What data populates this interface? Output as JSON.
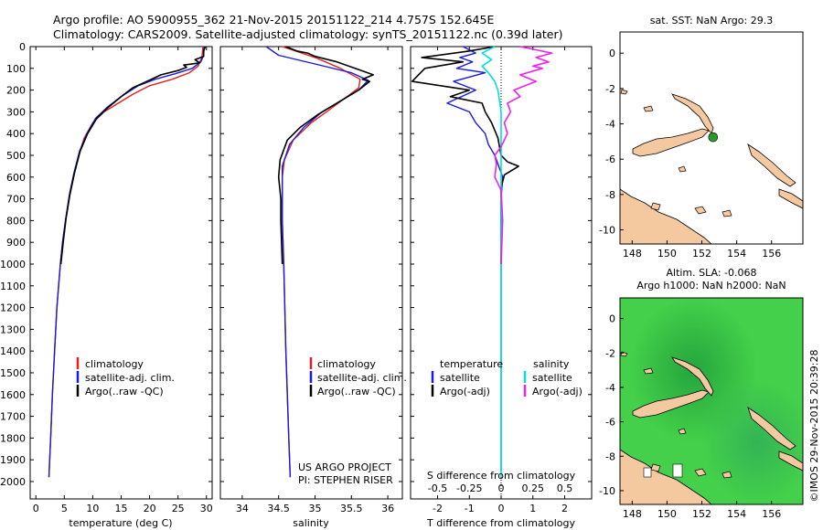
{
  "header": {
    "line1": "Argo profile: AO 5900955_362 21-Nov-2015 20151122_214 4.757S 152.645E",
    "line2": "Climatology: CARS2009. Satellite-adjusted climatology: synTS_20151122.nc (0.39d later)"
  },
  "colors": {
    "climatology": "#e02020",
    "satellite": "#1a1adc",
    "argo": "#000000",
    "sal_satellite": "#00e0e0",
    "sal_argo": "#ee22ee",
    "land": "#f5c9a0",
    "sla_sea_dark": "#18a030",
    "sla_sea_light": "#44d04a",
    "map_float": "#2a9a2a"
  },
  "depth_axis": {
    "ticks": [
      0,
      100,
      200,
      300,
      400,
      500,
      600,
      700,
      800,
      900,
      1000,
      1100,
      1200,
      1300,
      1400,
      1500,
      1600,
      1700,
      1800,
      1900,
      2000
    ]
  },
  "chart_data": [
    {
      "type": "line",
      "id": "temperature",
      "xlabel": "temperature (deg C)",
      "ylabel": "",
      "xlim": [
        -1,
        31
      ],
      "ylim": [
        2080,
        0
      ],
      "xticks": [
        0,
        5,
        10,
        15,
        20,
        25,
        30
      ],
      "legend": [
        "climatology",
        "satellite-adj. clim.",
        "Argo(..raw -QC)"
      ],
      "series": [
        {
          "name": "climatology",
          "points": [
            [
              29.4,
              0
            ],
            [
              29.2,
              50
            ],
            [
              28.5,
              90
            ],
            [
              27,
              120
            ],
            [
              24,
              150
            ],
            [
              20,
              180
            ],
            [
              17,
              220
            ],
            [
              14.5,
              260
            ],
            [
              12,
              300
            ],
            [
              10,
              350
            ],
            [
              8.5,
              420
            ],
            [
              7.5,
              500
            ],
            [
              6.6,
              600
            ],
            [
              5.8,
              700
            ],
            [
              5.2,
              800
            ],
            [
              4.7,
              900
            ],
            [
              4.3,
              1000
            ],
            [
              3.7,
              1200
            ],
            [
              3.3,
              1400
            ],
            [
              2.9,
              1600
            ],
            [
              2.6,
              1800
            ],
            [
              2.3,
              1980
            ]
          ]
        },
        {
          "name": "satellite-adj. clim.",
          "points": [
            [
              29.6,
              0
            ],
            [
              29.5,
              40
            ],
            [
              29,
              70
            ],
            [
              27.5,
              100
            ],
            [
              24.5,
              125
            ],
            [
              21,
              150
            ],
            [
              18,
              180
            ],
            [
              15,
              230
            ],
            [
              12.5,
              280
            ],
            [
              10.5,
              330
            ],
            [
              9,
              400
            ],
            [
              7.7,
              480
            ],
            [
              6.7,
              580
            ],
            [
              5.9,
              680
            ],
            [
              5.2,
              800
            ],
            [
              4.7,
              900
            ],
            [
              4.3,
              1000
            ],
            [
              3.7,
              1200
            ],
            [
              3.3,
              1400
            ],
            [
              2.9,
              1600
            ],
            [
              2.6,
              1800
            ],
            [
              2.3,
              1980
            ]
          ]
        },
        {
          "name": "Argo(..raw -QC)",
          "points": [
            [
              29.8,
              0
            ],
            [
              29.5,
              20
            ],
            [
              29.5,
              45
            ],
            [
              28,
              60
            ],
            [
              28.8,
              75
            ],
            [
              26,
              85
            ],
            [
              26.5,
              95
            ],
            [
              25,
              110
            ],
            [
              22,
              130
            ],
            [
              19.5,
              160
            ],
            [
              17,
              190
            ],
            [
              15,
              230
            ],
            [
              12.7,
              280
            ],
            [
              10.7,
              330
            ],
            [
              9.1,
              400
            ],
            [
              7.8,
              480
            ],
            [
              6.8,
              580
            ],
            [
              6.0,
              680
            ],
            [
              5.3,
              790
            ],
            [
              4.8,
              900
            ],
            [
              4.4,
              1000
            ]
          ]
        }
      ]
    },
    {
      "type": "line",
      "id": "salinity",
      "xlabel": "salinity",
      "ylabel": "",
      "xlim": [
        33.7,
        36.2
      ],
      "ylim": [
        2080,
        0
      ],
      "xticks": [
        34,
        34.5,
        35,
        35.5,
        36
      ],
      "legend": [
        "climatology",
        "satellite-adj. clim.",
        "Argo(..raw -QC)"
      ],
      "series": [
        {
          "name": "climatology",
          "points": [
            [
              34.55,
              0
            ],
            [
              35.0,
              50
            ],
            [
              35.35,
              100
            ],
            [
              35.62,
              150
            ],
            [
              35.6,
              190
            ],
            [
              35.4,
              240
            ],
            [
              35.2,
              290
            ],
            [
              34.95,
              350
            ],
            [
              34.7,
              430
            ],
            [
              34.58,
              520
            ],
            [
              34.55,
              600
            ],
            [
              34.55,
              800
            ],
            [
              34.57,
              1000
            ],
            [
              34.6,
              1400
            ],
            [
              34.64,
              1800
            ],
            [
              34.66,
              1980
            ]
          ]
        },
        {
          "name": "satellite-adj. clim.",
          "points": [
            [
              34.33,
              0
            ],
            [
              34.5,
              40
            ],
            [
              35.0,
              80
            ],
            [
              35.5,
              120
            ],
            [
              35.73,
              155
            ],
            [
              35.6,
              200
            ],
            [
              35.35,
              250
            ],
            [
              35.1,
              300
            ],
            [
              34.85,
              370
            ],
            [
              34.65,
              450
            ],
            [
              34.55,
              550
            ],
            [
              34.55,
              800
            ],
            [
              34.57,
              1000
            ],
            [
              34.6,
              1400
            ],
            [
              34.64,
              1800
            ],
            [
              34.66,
              1980
            ]
          ]
        },
        {
          "name": "Argo(..raw -QC)",
          "points": [
            [
              34.6,
              0
            ],
            [
              34.75,
              20
            ],
            [
              34.9,
              30
            ],
            [
              35.0,
              45
            ],
            [
              35.3,
              70
            ],
            [
              35.55,
              100
            ],
            [
              35.8,
              130
            ],
            [
              35.65,
              150
            ],
            [
              35.75,
              160
            ],
            [
              35.6,
              200
            ],
            [
              35.3,
              260
            ],
            [
              35.05,
              310
            ],
            [
              34.8,
              370
            ],
            [
              34.62,
              430
            ],
            [
              34.52,
              520
            ],
            [
              34.5,
              600
            ],
            [
              34.53,
              700
            ],
            [
              34.53,
              800
            ],
            [
              34.55,
              1000
            ]
          ]
        }
      ]
    },
    {
      "type": "line",
      "id": "difference",
      "xlabel": "T difference from climatology",
      "xlabel_top": "S difference from climatology",
      "ylabel": "",
      "xlim": [
        -2.85,
        2.85
      ],
      "ylim": [
        2080,
        0
      ],
      "xticks": [
        -2,
        -1,
        0,
        1,
        2
      ],
      "top_ticks": [
        "-0.5",
        "-0.25",
        "0",
        "0.25",
        "0.5"
      ],
      "top_tick_positions": [
        -2,
        -1,
        0,
        1,
        2
      ],
      "legend_left_title": "temperature",
      "legend_right_title": "salinity",
      "legend": [
        "satellite",
        "Argo(-adj)",
        "satellite",
        "Argo(-adj)"
      ],
      "series": [
        {
          "name": "temperature satellite",
          "points": [
            [
              -1.2,
              0
            ],
            [
              -0.8,
              30
            ],
            [
              -1.3,
              50
            ],
            [
              -0.9,
              70
            ],
            [
              -1.4,
              100
            ],
            [
              -0.5,
              120
            ],
            [
              -1.5,
              160
            ],
            [
              -0.8,
              200
            ],
            [
              -1.7,
              260
            ],
            [
              -1.0,
              300
            ],
            [
              -0.8,
              350
            ],
            [
              -0.5,
              400
            ],
            [
              -0.4,
              450
            ],
            [
              -0.2,
              500
            ],
            [
              0.05,
              600
            ],
            [
              0,
              700
            ],
            [
              0,
              900
            ],
            [
              0,
              1200
            ],
            [
              0,
              1600
            ],
            [
              0,
              1950
            ]
          ]
        },
        {
          "name": "temperature Argo(-adj)",
          "points": [
            [
              -0.2,
              0
            ],
            [
              -1.0,
              20
            ],
            [
              -2.5,
              50
            ],
            [
              -1.2,
              70
            ],
            [
              -2.4,
              100
            ],
            [
              -2.8,
              160
            ],
            [
              -1.0,
              200
            ],
            [
              -1.6,
              230
            ],
            [
              -0.6,
              260
            ],
            [
              -0.5,
              300
            ],
            [
              -0.3,
              350
            ],
            [
              -0.1,
              420
            ],
            [
              0,
              500
            ],
            [
              0.2,
              530
            ],
            [
              0.55,
              550
            ],
            [
              0.1,
              590
            ],
            [
              0,
              650
            ],
            [
              0,
              800
            ],
            [
              0,
              1000
            ]
          ]
        },
        {
          "name": "salinity satellite",
          "points": [
            [
              -0.2,
              0
            ],
            [
              -0.6,
              30
            ],
            [
              -0.3,
              60
            ],
            [
              -0.6,
              90
            ],
            [
              -0.4,
              120
            ],
            [
              -0.2,
              160
            ],
            [
              -0.1,
              200
            ],
            [
              -0.05,
              250
            ],
            [
              0,
              300
            ],
            [
              0,
              500
            ],
            [
              0,
              700
            ],
            [
              0,
              1000
            ],
            [
              0,
              1400
            ],
            [
              0,
              1800
            ],
            [
              0,
              1980
            ]
          ]
        },
        {
          "name": "salinity Argo(-adj)",
          "points": [
            [
              0.6,
              0
            ],
            [
              1.6,
              30
            ],
            [
              1.1,
              50
            ],
            [
              1.5,
              70
            ],
            [
              1.0,
              90
            ],
            [
              1.3,
              100
            ],
            [
              0.6,
              130
            ],
            [
              1.1,
              160
            ],
            [
              0.4,
              200
            ],
            [
              0.6,
              230
            ],
            [
              0.2,
              260
            ],
            [
              0.3,
              300
            ],
            [
              0.1,
              350
            ],
            [
              0.2,
              400
            ],
            [
              0,
              460
            ],
            [
              -0.2,
              500
            ],
            [
              -0.15,
              540
            ],
            [
              -0.2,
              600
            ],
            [
              0,
              660
            ],
            [
              0.05,
              800
            ],
            [
              0,
              1000
            ]
          ]
        }
      ]
    }
  ],
  "annotations": {
    "project": "US ARGO PROJECT",
    "pi": "PI: STEPHEN RISER",
    "timestamp": "©IMOS 29-Nov-2015 20:39:28"
  },
  "maps": [
    {
      "id": "sst-map",
      "title": "sat. SST: NaN Argo: 29.3",
      "xticks": [
        "148",
        "150",
        "152",
        "154",
        "156"
      ],
      "yticks": [
        "0",
        "-2",
        "-4",
        "-6",
        "-8",
        "-10"
      ],
      "lon_range": [
        147.3,
        157.8
      ],
      "lat_range": [
        -10.8,
        1.2
      ],
      "float_position": {
        "lon": 152.645,
        "lat": -4.757
      }
    },
    {
      "id": "sla-map",
      "title_line1": "Altim. SLA: -0.068",
      "title_line2": "Argo h1000: NaN h2000: NaN",
      "xticks": [
        "148",
        "150",
        "152",
        "154",
        "156"
      ],
      "yticks": [
        "0",
        "-2",
        "-4",
        "-6",
        "-8",
        "-10"
      ],
      "lon_range": [
        147.3,
        157.8
      ],
      "lat_range": [
        -10.8,
        1.2
      ]
    }
  ]
}
